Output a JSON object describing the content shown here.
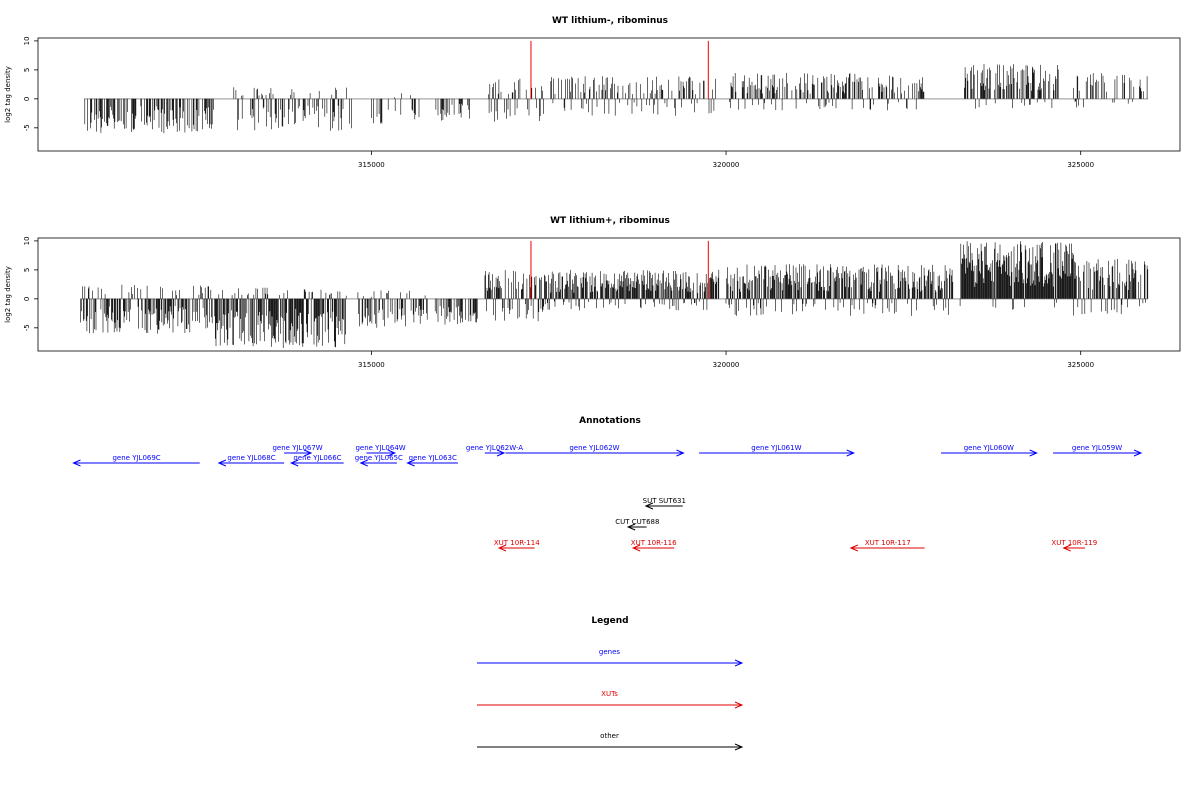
{
  "chart_data": [
    {
      "type": "bar",
      "title": "WT lithium-, ribominus",
      "ylabel": "log2 tag density",
      "xlim": [
        310300,
        326400
      ],
      "ylim": [
        -9,
        10.5
      ],
      "yticks": [
        -5,
        0,
        5,
        10
      ],
      "yticklabels": [
        "-5",
        "0",
        "5",
        "10"
      ],
      "xticks": [
        315000,
        320000,
        325000
      ],
      "xticklabels": [
        "315000",
        "320000",
        "325000"
      ],
      "highlight_positions": [
        317250,
        319750
      ],
      "highlight_color": "#ee0000",
      "series": [
        {
          "segments": [
            {
              "start": 310950,
              "end": 312800,
              "min": -6,
              "max": 0,
              "density": 0.55
            },
            {
              "start": 313050,
              "end": 314750,
              "min": -5.5,
              "max": 2,
              "density": 0.5
            },
            {
              "start": 315000,
              "end": 315700,
              "min": -4.5,
              "max": 1,
              "density": 0.25
            },
            {
              "start": 315900,
              "end": 316400,
              "min": -4,
              "max": 0,
              "density": 0.3
            },
            {
              "start": 316650,
              "end": 317450,
              "min": -4,
              "max": 3.5,
              "density": 0.5
            },
            {
              "start": 317500,
              "end": 319850,
              "min": -3,
              "max": 4,
              "density": 0.45
            },
            {
              "start": 320050,
              "end": 321950,
              "min": -2,
              "max": 4.5,
              "density": 0.6
            },
            {
              "start": 321950,
              "end": 322800,
              "min": -2,
              "max": 4,
              "density": 0.45
            },
            {
              "start": 323350,
              "end": 324700,
              "min": -2,
              "max": 6,
              "density": 0.7
            },
            {
              "start": 324900,
              "end": 325950,
              "min": -1.5,
              "max": 4.5,
              "density": 0.35
            }
          ]
        }
      ]
    },
    {
      "type": "bar",
      "title": "WT lithium+, ribominus",
      "ylabel": "log2 tag density",
      "xlim": [
        310300,
        326400
      ],
      "ylim": [
        -9,
        10.5
      ],
      "yticks": [
        -5,
        0,
        5,
        10
      ],
      "yticklabels": [
        "-5",
        "0",
        "5",
        "10"
      ],
      "xticks": [
        315000,
        320000,
        325000
      ],
      "xticklabels": [
        "315000",
        "320000",
        "325000"
      ],
      "highlight_positions": [
        317250,
        319750
      ],
      "highlight_color": "#ee0000",
      "series": [
        {
          "segments": [
            {
              "start": 310900,
              "end": 312800,
              "min": -6,
              "max": 2.5,
              "density": 0.7
            },
            {
              "start": 312800,
              "end": 314650,
              "min": -8.5,
              "max": 2,
              "density": 0.9
            },
            {
              "start": 314800,
              "end": 315800,
              "min": -5,
              "max": 1.5,
              "density": 0.55
            },
            {
              "start": 315900,
              "end": 316500,
              "min": -4.5,
              "max": 0,
              "density": 0.5
            },
            {
              "start": 316600,
              "end": 317450,
              "min": -4,
              "max": 5,
              "density": 0.75
            },
            {
              "start": 317450,
              "end": 319900,
              "min": -2,
              "max": 5,
              "density": 0.9
            },
            {
              "start": 320000,
              "end": 323200,
              "min": -3,
              "max": 6,
              "density": 0.85
            },
            {
              "start": 323300,
              "end": 324900,
              "min": -2,
              "max": 10,
              "density": 1.0
            },
            {
              "start": 324900,
              "end": 325950,
              "min": -3,
              "max": 7,
              "density": 0.7
            }
          ]
        }
      ]
    }
  ],
  "annotations": {
    "title": "Annotations",
    "colors": {
      "gene": "#0000ff",
      "xut": "#dd0000",
      "other": "#000000"
    },
    "features": [
      {
        "label": "gene YJL069C",
        "kind": "gene",
        "strand": "-",
        "start": 310800,
        "end": 312580,
        "row": 1
      },
      {
        "label": "gene YJL068C",
        "kind": "gene",
        "strand": "-",
        "start": 312850,
        "end": 313770,
        "row": 1
      },
      {
        "label": "gene YJL067W",
        "kind": "gene",
        "strand": "+",
        "start": 313770,
        "end": 314150,
        "row": 0
      },
      {
        "label": "gene YJL066C",
        "kind": "gene",
        "strand": "-",
        "start": 313870,
        "end": 314610,
        "row": 1
      },
      {
        "label": "gene YJL064W",
        "kind": "gene",
        "strand": "+",
        "start": 314930,
        "end": 315330,
        "row": 0
      },
      {
        "label": "gene YJL065C",
        "kind": "gene",
        "strand": "-",
        "start": 314850,
        "end": 315360,
        "row": 1
      },
      {
        "label": "gene YJL063C",
        "kind": "gene",
        "strand": "-",
        "start": 315510,
        "end": 316220,
        "row": 1
      },
      {
        "label": "gene YJL062W-A",
        "kind": "gene",
        "strand": "+",
        "start": 316600,
        "end": 316870,
        "row": 0
      },
      {
        "label": "gene YJL062W",
        "kind": "gene",
        "strand": "+",
        "start": 316890,
        "end": 319400,
        "row": 0
      },
      {
        "label": "gene YJL061W",
        "kind": "gene",
        "strand": "+",
        "start": 319620,
        "end": 321800,
        "row": 0
      },
      {
        "label": "gene YJL060W",
        "kind": "gene",
        "strand": "+",
        "start": 323030,
        "end": 324380,
        "row": 0
      },
      {
        "label": "gene YJL059W",
        "kind": "gene",
        "strand": "+",
        "start": 324610,
        "end": 325850,
        "row": 0
      },
      {
        "label": "SUT SUT631",
        "kind": "other",
        "strand": "-",
        "start": 318870,
        "end": 319390,
        "row": 2
      },
      {
        "label": "CUT CUT688",
        "kind": "other",
        "strand": "-",
        "start": 318620,
        "end": 318880,
        "row": 3
      },
      {
        "label": "XUT 10R-114",
        "kind": "xut",
        "strand": "-",
        "start": 316800,
        "end": 317300,
        "row": 4
      },
      {
        "label": "XUT 10R-116",
        "kind": "xut",
        "strand": "-",
        "start": 318690,
        "end": 319270,
        "row": 4
      },
      {
        "label": "XUT 10R-117",
        "kind": "xut",
        "strand": "-",
        "start": 321760,
        "end": 322800,
        "row": 4
      },
      {
        "label": "XUT 10R-119",
        "kind": "xut",
        "strand": "-",
        "start": 324760,
        "end": 325060,
        "row": 4
      }
    ]
  },
  "legend": {
    "title": "Legend",
    "items": [
      {
        "label": "genes",
        "kind": "gene"
      },
      {
        "label": "XUTs",
        "kind": "xut"
      },
      {
        "label": "other",
        "kind": "other"
      }
    ]
  }
}
